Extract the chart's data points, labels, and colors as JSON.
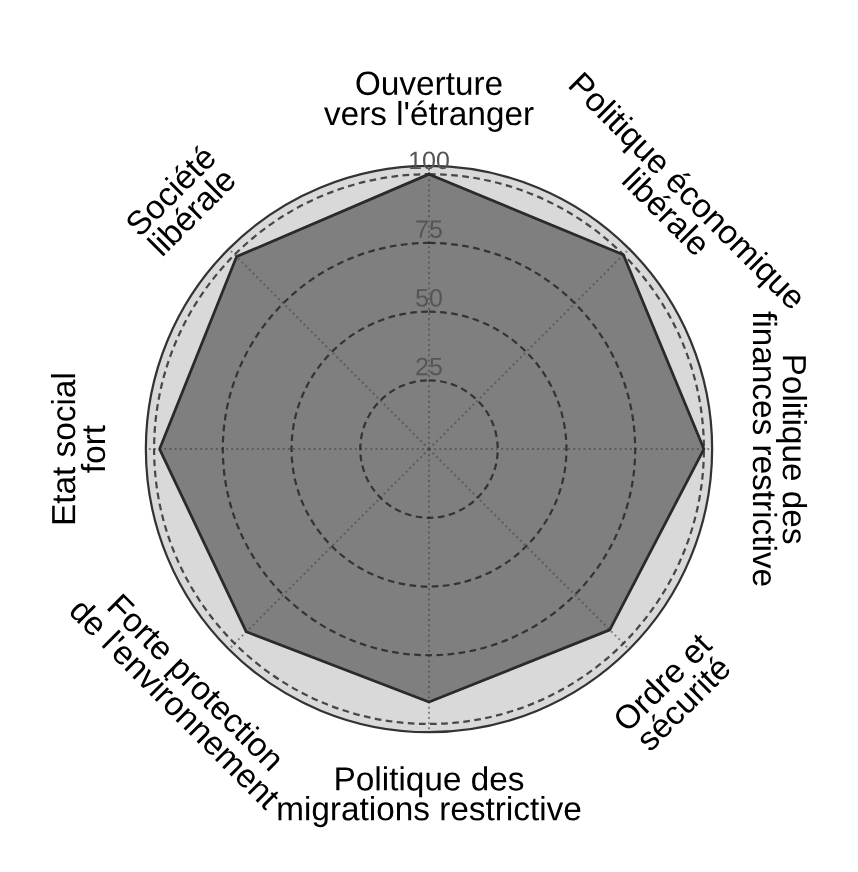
{
  "chart_data": {
    "type": "radar",
    "categories": [
      "Ouverture\nvers l'étranger",
      "Politique économique\nlibérale",
      "Politique des\nfinances restrictive",
      "Ordre et\nsécurité",
      "Politique des\nmigrations restrictive",
      "Forte protection\nde l'environnement",
      "Etat social\nfort",
      "Société\nlibérale"
    ],
    "series": [
      {
        "color": "#7f7f7f",
        "values": [
          100,
          100,
          100,
          93,
          92,
          94,
          98,
          99
        ]
      }
    ],
    "ylim": [
      0,
      103
    ],
    "yticks": [
      25,
      50,
      75,
      100
    ],
    "grid": true
  }
}
